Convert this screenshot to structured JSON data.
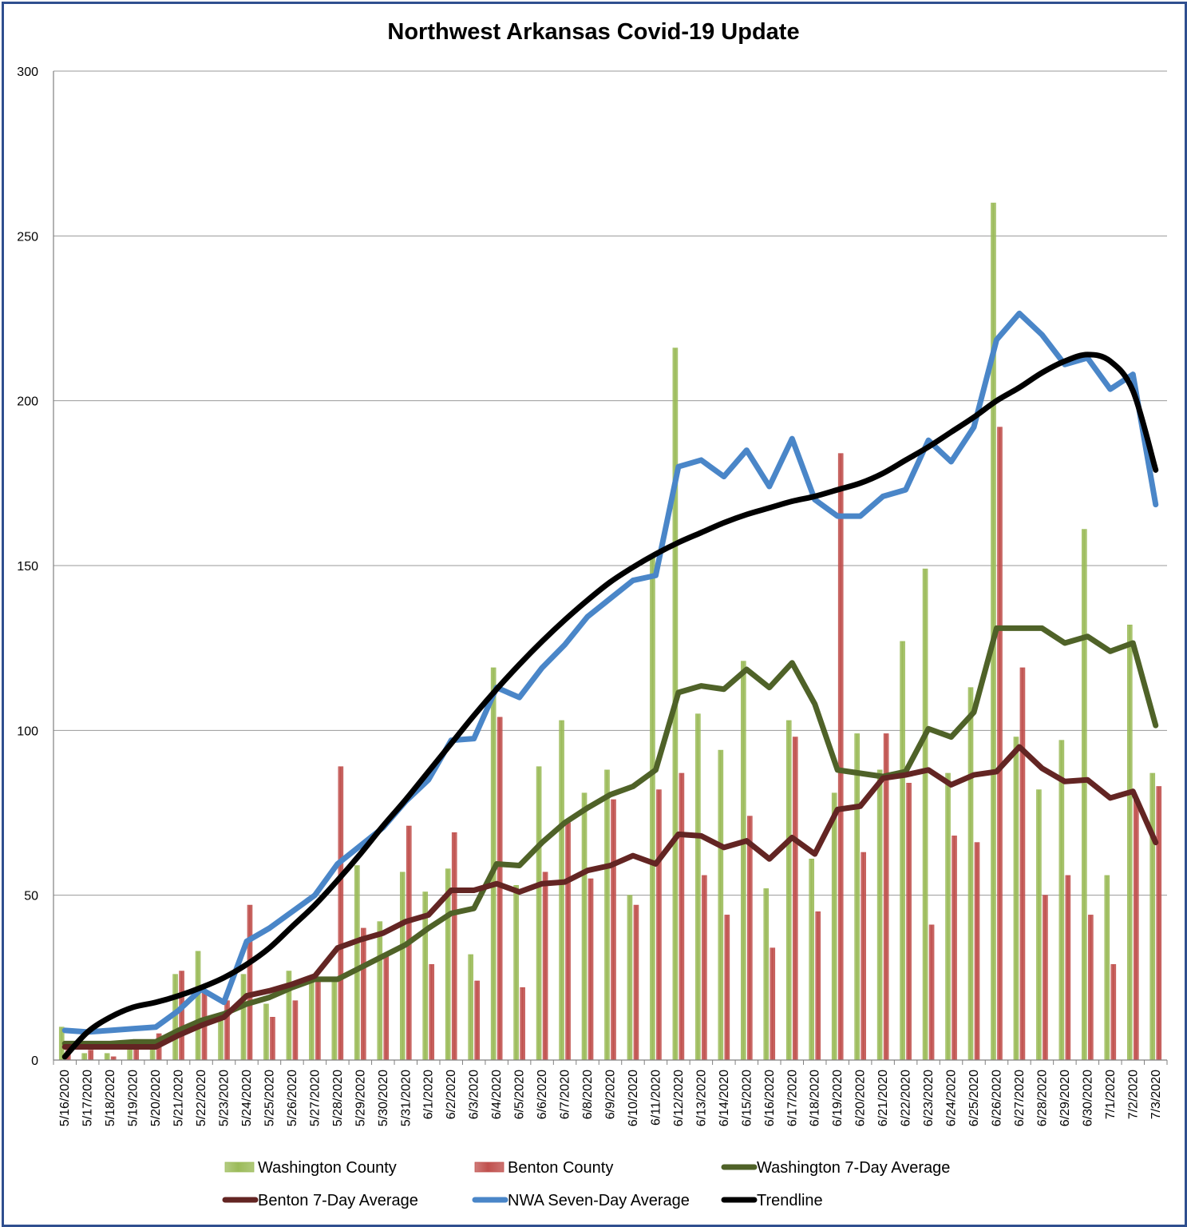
{
  "chart_data": {
    "type": "bar",
    "title": "Northwest Arkansas Covid-19 Update",
    "xlabel": "",
    "ylabel": "",
    "ylim": [
      0,
      300
    ],
    "yticks": [
      0,
      50,
      100,
      150,
      200,
      250,
      300
    ],
    "grid": true,
    "legend_position": "bottom",
    "categories": [
      "5/16/2020",
      "5/17/2020",
      "5/18/2020",
      "5/19/2020",
      "5/20/2020",
      "5/21/2020",
      "5/22/2020",
      "5/23/2020",
      "5/24/2020",
      "5/25/2020",
      "5/26/2020",
      "5/27/2020",
      "5/28/2020",
      "5/29/2020",
      "5/30/2020",
      "5/31/2020",
      "6/1/2020",
      "6/2/2020",
      "6/3/2020",
      "6/4/2020",
      "6/5/2020",
      "6/6/2020",
      "6/7/2020",
      "6/8/2020",
      "6/9/2020",
      "6/10/2020",
      "6/11/2020",
      "6/12/2020",
      "6/13/2020",
      "6/14/2020",
      "6/15/2020",
      "6/16/2020",
      "6/17/2020",
      "6/18/2020",
      "6/19/2020",
      "6/20/2020",
      "6/21/2020",
      "6/22/2020",
      "6/23/2020",
      "6/24/2020",
      "6/25/2020",
      "6/26/2020",
      "6/27/2020",
      "6/28/2020",
      "6/29/2020",
      "6/30/2020",
      "7/1/2020",
      "7/2/2020",
      "7/3/2020"
    ],
    "series": [
      {
        "name": "Washington County",
        "kind": "bar",
        "color": "#9bbb59",
        "values": [
          10,
          2,
          2,
          5,
          4,
          26,
          33,
          13,
          26,
          17,
          27,
          24,
          24,
          59,
          42,
          57,
          51,
          58,
          32,
          119,
          53,
          89,
          103,
          81,
          88,
          50,
          153,
          216,
          105,
          94,
          121,
          52,
          103,
          61,
          81,
          99,
          88,
          127,
          149,
          87,
          113,
          260,
          98,
          82,
          97,
          161,
          56,
          132,
          87
        ]
      },
      {
        "name": "Benton County",
        "kind": "bar",
        "color": "#c0504d",
        "values": [
          3,
          3,
          1,
          5,
          8,
          27,
          21,
          18,
          47,
          13,
          18,
          24,
          89,
          40,
          32,
          71,
          29,
          69,
          24,
          104,
          22,
          57,
          72,
          55,
          79,
          47,
          82,
          87,
          56,
          44,
          74,
          34,
          98,
          45,
          184,
          63,
          99,
          84,
          41,
          68,
          66,
          192,
          119,
          50,
          56,
          44,
          29,
          79,
          83
        ]
      },
      {
        "name": "Washington 7-Day Average",
        "kind": "line",
        "color": "#4f6228",
        "values": [
          5,
          5,
          5,
          5.5,
          5.5,
          9,
          12,
          14,
          17,
          19,
          22,
          24.5,
          24.5,
          28,
          31.5,
          35,
          40,
          44.5,
          46,
          59.5,
          59,
          66,
          72,
          76.5,
          80.5,
          83,
          88,
          111.5,
          113.5,
          112.5,
          118.5,
          113,
          120.5,
          108,
          88,
          87,
          86,
          87.5,
          100.5,
          98,
          105.5,
          131,
          131,
          131,
          126.5,
          128.5,
          124,
          126.5,
          101.5
        ]
      },
      {
        "name": "Benton 7-Day Average",
        "kind": "line",
        "color": "#632523",
        "values": [
          4,
          4,
          4,
          4,
          4,
          7.5,
          10.5,
          13,
          19.5,
          21,
          23,
          25.5,
          34,
          36.5,
          38.5,
          42,
          44,
          51.5,
          51.5,
          53.5,
          51,
          53.5,
          54,
          57.5,
          59,
          62,
          59.5,
          68.5,
          68,
          64.5,
          66.5,
          61,
          67.5,
          62.5,
          76,
          77,
          85.5,
          86.5,
          88,
          83.5,
          86.5,
          87.5,
          95,
          88.5,
          84.5,
          85,
          79.5,
          81.5,
          66
        ]
      },
      {
        "name": "NWA Seven-Day Average",
        "kind": "line",
        "color": "#4a86c8",
        "values": [
          9,
          8.5,
          9,
          9.5,
          10,
          15,
          21.5,
          17.5,
          36,
          40,
          45,
          50,
          59.5,
          65,
          70.5,
          78.5,
          85,
          97,
          97.5,
          113,
          110,
          119,
          126,
          134.5,
          140,
          145.5,
          147,
          180,
          182,
          177,
          185,
          174,
          188.5,
          170,
          165,
          165,
          171,
          173,
          188,
          181.5,
          192,
          218.5,
          226.5,
          220,
          211,
          213,
          203.5,
          208,
          168.5
        ]
      },
      {
        "name": "Trendline",
        "kind": "line",
        "color": "#000000",
        "values": [
          1,
          8.5,
          13,
          16,
          17.5,
          19.5,
          22,
          25,
          29,
          34,
          40.5,
          47,
          54.5,
          62.5,
          71,
          79,
          87.5,
          96,
          104.5,
          112.5,
          120,
          127,
          133.5,
          139.5,
          145,
          149.5,
          153.5,
          157,
          160,
          163,
          165.5,
          167.5,
          169.5,
          171,
          173,
          175,
          178,
          182,
          186,
          190.5,
          195,
          200,
          204,
          208.5,
          212,
          214,
          212,
          203,
          179
        ]
      }
    ]
  }
}
